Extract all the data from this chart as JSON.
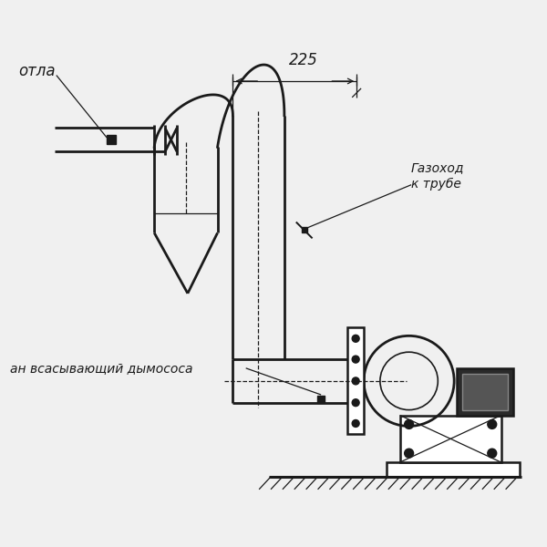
{
  "bg_color": "#f0f0f0",
  "line_color": "#1a1a1a",
  "lw": 1.8,
  "lw_thin": 0.9,
  "label_kotla": "отла",
  "label_gazohod": "Газоход\nк трубе",
  "label_vsos": "ан всасывающий дымососа",
  "dim_225": "225"
}
